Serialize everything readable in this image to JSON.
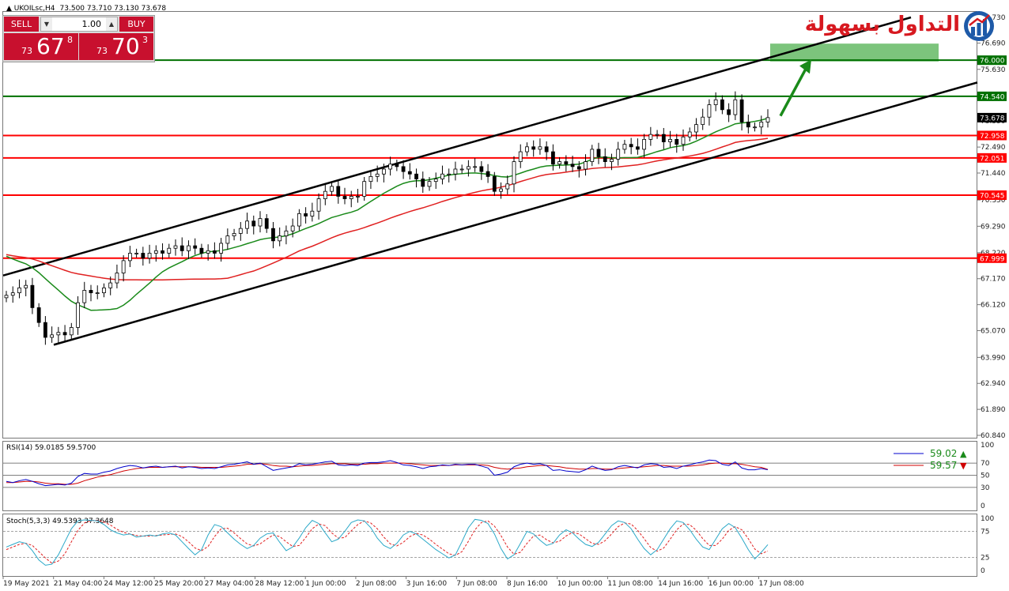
{
  "header": {
    "symbol": "UKOILsc,H4",
    "ohlc": "73.500 73.710 73.130 73.678"
  },
  "trade_panel": {
    "sell_label": "SELL",
    "buy_label": "BUY",
    "lot": "1.00",
    "sell_price": {
      "prefix": "73",
      "main": "67",
      "sup": "8"
    },
    "buy_price": {
      "prefix": "73",
      "main": "70",
      "sup": "3"
    }
  },
  "logo": {
    "text": "التداول بسهولة"
  },
  "colors": {
    "candle_up": "#ffffff",
    "candle_down": "#000000",
    "ma_fast": "#1a8a1a",
    "ma_slow": "#e02020",
    "support": "#ff0000",
    "resistance": "#007000",
    "target_zone": "#7cc47c",
    "arrow": "#1a8a1a"
  },
  "chart_data": [
    {
      "type": "candlestick",
      "symbol": "UKOILsc",
      "timeframe": "H4",
      "y_ticks": [
        "77.730",
        "76.690",
        "75.630",
        "74.590",
        "73.550",
        "72.490",
        "71.440",
        "70.350",
        "69.290",
        "68.220",
        "67.170",
        "66.120",
        "65.070",
        "63.990",
        "62.940",
        "61.890",
        "60.840"
      ],
      "ylim": [
        60.84,
        77.73
      ],
      "x_ticks": [
        "19 May 2021",
        "21 May 04:00",
        "24 May 12:00",
        "25 May 20:00",
        "27 May 04:00",
        "28 May 12:00",
        "1 Jun 00:00",
        "2 Jun 08:00",
        "3 Jun 16:00",
        "7 Jun 08:00",
        "8 Jun 16:00",
        "10 Jun 00:00",
        "11 Jun 08:00",
        "14 Jun 16:00",
        "16 Jun 00:00",
        "17 Jun 08:00"
      ],
      "closes": [
        66.5,
        66.6,
        66.8,
        66.9,
        66.0,
        65.4,
        64.8,
        64.9,
        65.0,
        64.9,
        65.2,
        66.2,
        66.7,
        66.6,
        66.6,
        66.8,
        67.0,
        67.4,
        67.9,
        68.2,
        68.2,
        68.0,
        68.2,
        68.3,
        68.2,
        68.4,
        68.5,
        68.3,
        68.5,
        68.4,
        68.2,
        68.3,
        68.2,
        68.6,
        68.9,
        69.0,
        69.2,
        69.5,
        69.3,
        69.6,
        69.2,
        68.7,
        68.9,
        69.1,
        69.3,
        69.8,
        69.7,
        69.9,
        70.4,
        70.7,
        70.9,
        70.5,
        70.4,
        70.5,
        70.5,
        71.1,
        71.3,
        71.4,
        71.6,
        71.8,
        71.7,
        71.5,
        71.4,
        71.2,
        70.9,
        71.1,
        71.2,
        71.4,
        71.4,
        71.6,
        71.6,
        71.7,
        71.7,
        71.5,
        71.3,
        70.7,
        70.8,
        71.0,
        71.9,
        72.3,
        72.5,
        72.4,
        72.5,
        72.3,
        71.8,
        71.9,
        71.8,
        71.7,
        71.6,
        71.9,
        72.4,
        72.1,
        71.9,
        72.0,
        72.4,
        72.6,
        72.5,
        72.4,
        72.8,
        73.0,
        73.0,
        72.7,
        72.8,
        72.6,
        72.9,
        73.1,
        73.4,
        73.7,
        74.2,
        74.4,
        74.0,
        73.8,
        74.4,
        73.5,
        73.3,
        73.3,
        73.5,
        73.68
      ],
      "indicators": [
        "Moving average (fast)",
        "Moving average (slow)"
      ],
      "levels": [
        {
          "value": "76.000",
          "color": "resistance"
        },
        {
          "value": "74.540",
          "color": "resistance"
        },
        {
          "value": "73.678",
          "color": "current"
        },
        {
          "value": "72.958",
          "color": "support"
        },
        {
          "value": "72.051",
          "color": "support"
        },
        {
          "value": "70.545",
          "color": "support"
        },
        {
          "value": "67.999",
          "color": "support"
        }
      ],
      "annotations": [
        "Ascending channel",
        "Target zone",
        "Up arrow"
      ]
    },
    {
      "type": "line",
      "title": "RSI(14) 59.0185 59.5700",
      "y_ticks": [
        "100",
        "70",
        "50",
        "30",
        "0"
      ],
      "levels": [
        70,
        50,
        30
      ],
      "ylim": [
        0,
        100
      ],
      "legend": [
        {
          "name": "59.02",
          "color": "#0000cc",
          "dir": "up"
        },
        {
          "name": "59.57",
          "color": "#d00000",
          "dir": "down"
        }
      ],
      "rsi": [
        40,
        38,
        41,
        43,
        40,
        36,
        33,
        34,
        35,
        34,
        37,
        48,
        53,
        52,
        52,
        55,
        57,
        61,
        64,
        66,
        65,
        62,
        64,
        65,
        63,
        64,
        65,
        62,
        64,
        63,
        61,
        62,
        61,
        64,
        67,
        68,
        70,
        72,
        68,
        70,
        64,
        58,
        60,
        62,
        64,
        69,
        67,
        68,
        70,
        72,
        73,
        67,
        66,
        67,
        66,
        70,
        71,
        71,
        72,
        74,
        71,
        67,
        66,
        64,
        61,
        64,
        65,
        67,
        66,
        68,
        67,
        68,
        68,
        65,
        62,
        50,
        52,
        55,
        64,
        68,
        70,
        68,
        69,
        66,
        58,
        59,
        57,
        56,
        55,
        59,
        65,
        61,
        58,
        59,
        64,
        66,
        64,
        62,
        67,
        69,
        68,
        63,
        64,
        61,
        65,
        67,
        70,
        72,
        75,
        74,
        68,
        66,
        72,
        62,
        59,
        59,
        61,
        59.0
      ],
      "rsi_signal": [
        38,
        38,
        39,
        40,
        40,
        39,
        37,
        36,
        36,
        35,
        35,
        37,
        41,
        44,
        47,
        49,
        51,
        54,
        57,
        59,
        61,
        62,
        63,
        63,
        63,
        64,
        64,
        64,
        64,
        64,
        63,
        63,
        63,
        63,
        64,
        65,
        66,
        68,
        68,
        69,
        68,
        66,
        65,
        65,
        64,
        65,
        66,
        66,
        67,
        68,
        69,
        69,
        69,
        68,
        68,
        68,
        69,
        69,
        70,
        70,
        70,
        70,
        69,
        68,
        67,
        66,
        66,
        66,
        66,
        67,
        67,
        67,
        67,
        67,
        66,
        63,
        61,
        60,
        61,
        62,
        64,
        65,
        66,
        66,
        65,
        64,
        62,
        61,
        60,
        60,
        61,
        61,
        60,
        60,
        61,
        62,
        63,
        63,
        64,
        65,
        66,
        66,
        65,
        65,
        65,
        65,
        66,
        67,
        69,
        70,
        70,
        69,
        69,
        68,
        66,
        64,
        63,
        59.57
      ]
    },
    {
      "type": "line",
      "title": "Stoch(5,3,3) 49.5393 37.3648",
      "y_ticks": [
        "100",
        "75",
        "25",
        "0"
      ],
      "levels": [
        75,
        25
      ],
      "ylim": [
        0,
        100
      ],
      "main": [
        45,
        50,
        55,
        52,
        38,
        20,
        10,
        12,
        30,
        55,
        80,
        95,
        97,
        96,
        95,
        88,
        78,
        72,
        68,
        70,
        64,
        66,
        68,
        66,
        70,
        72,
        68,
        55,
        42,
        30,
        40,
        68,
        88,
        84,
        72,
        60,
        50,
        42,
        48,
        62,
        70,
        72,
        54,
        38,
        45,
        62,
        82,
        96,
        90,
        72,
        55,
        60,
        75,
        92,
        97,
        95,
        82,
        62,
        48,
        42,
        52,
        68,
        75,
        70,
        60,
        50,
        40,
        32,
        24,
        30,
        55,
        82,
        98,
        96,
        90,
        70,
        42,
        22,
        30,
        52,
        75,
        70,
        58,
        48,
        52,
        68,
        78,
        72,
        60,
        50,
        46,
        54,
        70,
        86,
        95,
        92,
        80,
        60,
        42,
        30,
        40,
        60,
        80,
        95,
        92,
        78,
        60,
        45,
        40,
        60,
        80,
        90,
        82,
        62,
        40,
        22,
        35,
        49.5
      ],
      "signal": [
        40,
        45,
        50,
        52,
        48,
        36,
        24,
        14,
        18,
        32,
        55,
        77,
        91,
        96,
        96,
        93,
        87,
        79,
        73,
        70,
        67,
        66,
        66,
        67,
        68,
        69,
        70,
        65,
        55,
        43,
        38,
        46,
        65,
        80,
        81,
        72,
        61,
        51,
        47,
        51,
        60,
        68,
        65,
        55,
        46,
        48,
        63,
        80,
        89,
        86,
        72,
        62,
        63,
        76,
        88,
        95,
        91,
        80,
        64,
        51,
        47,
        54,
        65,
        71,
        68,
        60,
        50,
        41,
        32,
        29,
        36,
        56,
        78,
        92,
        95,
        85,
        67,
        45,
        31,
        35,
        52,
        66,
        68,
        59,
        53,
        56,
        66,
        73,
        70,
        61,
        52,
        50,
        57,
        70,
        84,
        91,
        89,
        77,
        61,
        44,
        37,
        43,
        60,
        78,
        89,
        88,
        77,
        61,
        48,
        48,
        60,
        77,
        84,
        78,
        61,
        41,
        32,
        37.4
      ]
    }
  ]
}
